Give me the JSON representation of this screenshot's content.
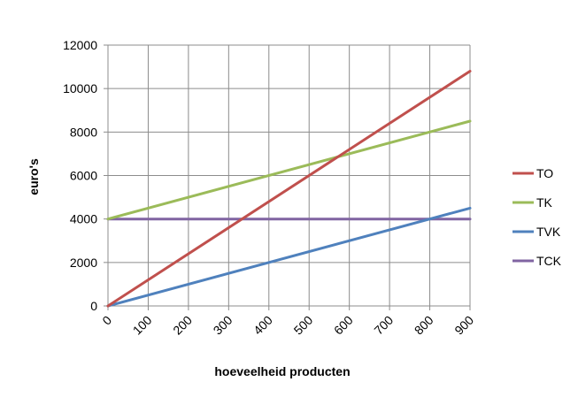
{
  "chart_data": {
    "type": "line",
    "title": "",
    "xlabel": "hoeveelheid producten",
    "ylabel": "euro's",
    "xlim": [
      0,
      900
    ],
    "ylim": [
      0,
      12000
    ],
    "x_ticks": [
      0,
      100,
      200,
      300,
      400,
      500,
      600,
      700,
      800,
      900
    ],
    "y_ticks": [
      0,
      2000,
      4000,
      6000,
      8000,
      10000,
      12000
    ],
    "grid": true,
    "legend_position": "right",
    "series": [
      {
        "name": "TO",
        "color": "#c0504d",
        "x": [
          0,
          900
        ],
        "y": [
          0,
          10800
        ]
      },
      {
        "name": "TK",
        "color": "#9bbb59",
        "x": [
          0,
          900
        ],
        "y": [
          4000,
          8500
        ]
      },
      {
        "name": "TVK",
        "color": "#4f81bd",
        "x": [
          0,
          900
        ],
        "y": [
          0,
          4500
        ]
      },
      {
        "name": "TCK",
        "color": "#8064a2",
        "x": [
          0,
          900
        ],
        "y": [
          4000,
          4000
        ]
      }
    ]
  }
}
